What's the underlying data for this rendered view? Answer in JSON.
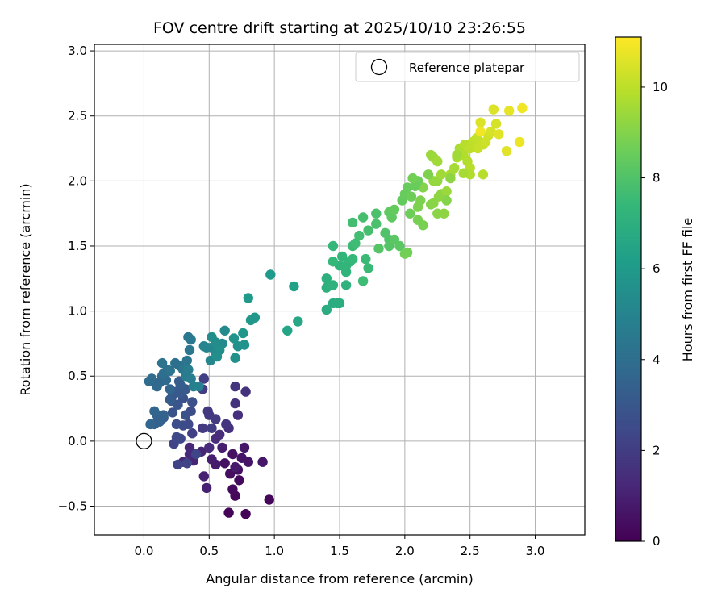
{
  "chart_data": {
    "type": "scatter",
    "title": "FOV centre drift starting at 2025/10/10 23:26:55",
    "xlabel": "Angular distance from reference (arcmin)",
    "ylabel": "Rotation from reference (arcmin)",
    "xlim": [
      -0.38,
      3.38
    ],
    "ylim": [
      -0.72,
      3.05
    ],
    "xticks": [
      0.0,
      0.5,
      1.0,
      1.5,
      2.0,
      2.5,
      3.0
    ],
    "xtick_labels": [
      "0.0",
      "0.5",
      "1.0",
      "1.5",
      "2.0",
      "2.5",
      "3.0"
    ],
    "yticks": [
      -0.5,
      0.0,
      0.5,
      1.0,
      1.5,
      2.0,
      2.5,
      3.0
    ],
    "ytick_labels": [
      "−0.5",
      "0.0",
      "0.5",
      "1.0",
      "1.5",
      "2.0",
      "2.5",
      "3.0"
    ],
    "grid": true,
    "legend": {
      "placement": "top-right",
      "entries": [
        "Reference platepar"
      ]
    },
    "reference_point": {
      "x": 0.0,
      "y": 0.0,
      "marker": "hollow-circle"
    },
    "colorbar": {
      "label": "Hours from first FF file",
      "colormap": "viridis",
      "range": [
        0,
        11.1
      ],
      "ticks": [
        0,
        2,
        4,
        6,
        8,
        10
      ],
      "tick_labels": [
        "0",
        "2",
        "4",
        "6",
        "8",
        "10"
      ]
    },
    "colormap_stops": [
      "#440154",
      "#482878",
      "#3e4a89",
      "#31688e",
      "#26828e",
      "#1f9e89",
      "#35b779",
      "#6ece58",
      "#b5de2b",
      "#fde725"
    ],
    "points": [
      [
        0.65,
        -0.55,
        0.1
      ],
      [
        0.78,
        -0.56,
        0.1
      ],
      [
        0.7,
        -0.42,
        0.2
      ],
      [
        0.96,
        -0.45,
        0.2
      ],
      [
        0.68,
        -0.37,
        0.3
      ],
      [
        0.73,
        -0.3,
        0.3
      ],
      [
        0.72,
        -0.22,
        0.4
      ],
      [
        0.66,
        -0.25,
        0.4
      ],
      [
        0.62,
        -0.17,
        0.5
      ],
      [
        0.68,
        -0.1,
        0.5
      ],
      [
        0.75,
        -0.13,
        0.6
      ],
      [
        0.8,
        -0.16,
        0.6
      ],
      [
        0.91,
        -0.16,
        0.7
      ],
      [
        0.77,
        -0.05,
        0.7
      ],
      [
        0.7,
        -0.2,
        0.8
      ],
      [
        0.55,
        -0.18,
        0.8
      ],
      [
        0.52,
        -0.14,
        0.9
      ],
      [
        0.6,
        -0.05,
        0.9
      ],
      [
        0.48,
        -0.36,
        1.0
      ],
      [
        0.46,
        -0.27,
        1.0
      ],
      [
        0.44,
        -0.08,
        1.1
      ],
      [
        0.38,
        -0.15,
        1.1
      ],
      [
        0.35,
        -0.05,
        1.2
      ],
      [
        0.3,
        -0.16,
        1.2
      ],
      [
        0.35,
        -0.1,
        1.3
      ],
      [
        0.5,
        -0.05,
        1.3
      ],
      [
        0.55,
        0.02,
        1.4
      ],
      [
        0.58,
        0.05,
        1.4
      ],
      [
        0.65,
        0.1,
        1.5
      ],
      [
        0.72,
        0.2,
        1.5
      ],
      [
        0.7,
        0.29,
        1.6
      ],
      [
        0.78,
        0.38,
        1.6
      ],
      [
        0.7,
        0.42,
        1.7
      ],
      [
        0.63,
        0.13,
        1.7
      ],
      [
        0.5,
        0.2,
        1.8
      ],
      [
        0.49,
        0.23,
        1.8
      ],
      [
        0.45,
        0.1,
        1.9
      ],
      [
        0.55,
        0.17,
        1.9
      ],
      [
        0.52,
        0.1,
        2.0
      ],
      [
        0.45,
        0.4,
        2.0
      ],
      [
        0.46,
        0.48,
        2.1
      ],
      [
        0.37,
        0.06,
        2.1
      ],
      [
        0.26,
        -0.18,
        2.2
      ],
      [
        0.33,
        -0.17,
        2.2
      ],
      [
        0.4,
        -0.1,
        2.3
      ],
      [
        0.23,
        -0.02,
        2.3
      ],
      [
        0.25,
        0.03,
        2.4
      ],
      [
        0.28,
        0.02,
        2.4
      ],
      [
        0.3,
        0.12,
        2.5
      ],
      [
        0.34,
        0.13,
        2.5
      ],
      [
        0.36,
        0.23,
        2.6
      ],
      [
        0.25,
        0.13,
        2.6
      ],
      [
        0.37,
        0.3,
        2.7
      ],
      [
        0.32,
        0.2,
        2.7
      ],
      [
        0.22,
        0.22,
        2.8
      ],
      [
        0.3,
        0.33,
        2.8
      ],
      [
        0.26,
        0.28,
        2.9
      ],
      [
        0.22,
        0.35,
        2.9
      ],
      [
        0.28,
        0.37,
        3.0
      ],
      [
        0.21,
        0.31,
        3.0
      ],
      [
        0.25,
        0.38,
        3.1
      ],
      [
        0.32,
        0.4,
        3.1
      ],
      [
        0.15,
        0.18,
        3.2
      ],
      [
        0.2,
        0.32,
        3.2
      ],
      [
        0.27,
        0.46,
        3.3
      ],
      [
        0.28,
        0.43,
        3.3
      ],
      [
        0.12,
        0.15,
        3.4
      ],
      [
        0.08,
        0.13,
        3.4
      ],
      [
        0.15,
        0.2,
        3.5
      ],
      [
        0.1,
        0.2,
        3.5
      ],
      [
        0.08,
        0.23,
        3.6
      ],
      [
        0.05,
        0.13,
        3.6
      ],
      [
        0.2,
        0.4,
        3.6
      ],
      [
        0.12,
        0.45,
        3.7
      ],
      [
        0.14,
        0.5,
        3.7
      ],
      [
        0.17,
        0.47,
        3.8
      ],
      [
        0.1,
        0.42,
        3.8
      ],
      [
        0.06,
        0.48,
        3.9
      ],
      [
        0.04,
        0.46,
        3.9
      ],
      [
        0.15,
        0.52,
        4.0
      ],
      [
        0.18,
        0.55,
        4.0
      ],
      [
        0.24,
        0.6,
        4.1
      ],
      [
        0.27,
        0.58,
        4.1
      ],
      [
        0.14,
        0.6,
        4.2
      ],
      [
        0.2,
        0.54,
        4.2
      ],
      [
        0.3,
        0.55,
        4.3
      ],
      [
        0.33,
        0.62,
        4.3
      ],
      [
        0.35,
        0.7,
        4.4
      ],
      [
        0.34,
        0.8,
        4.4
      ],
      [
        0.36,
        0.78,
        4.5
      ],
      [
        0.32,
        0.5,
        4.6
      ],
      [
        0.34,
        0.55,
        4.6
      ],
      [
        0.36,
        0.48,
        4.7
      ],
      [
        0.38,
        0.42,
        4.8
      ],
      [
        0.42,
        0.42,
        4.9
      ],
      [
        0.46,
        0.73,
        5.0
      ],
      [
        0.48,
        0.72,
        5.0
      ],
      [
        0.52,
        0.72,
        5.1
      ],
      [
        0.51,
        0.62,
        5.1
      ],
      [
        0.55,
        0.68,
        5.2
      ],
      [
        0.58,
        0.73,
        5.2
      ],
      [
        0.6,
        0.75,
        5.3
      ],
      [
        0.62,
        0.85,
        5.3
      ],
      [
        0.52,
        0.8,
        5.4
      ],
      [
        0.55,
        0.76,
        5.4
      ],
      [
        0.58,
        0.7,
        5.5
      ],
      [
        0.56,
        0.65,
        5.5
      ],
      [
        0.7,
        0.64,
        5.6
      ],
      [
        0.72,
        0.73,
        5.6
      ],
      [
        0.69,
        0.79,
        5.7
      ],
      [
        0.77,
        0.74,
        5.7
      ],
      [
        0.76,
        0.83,
        5.8
      ],
      [
        0.82,
        0.93,
        5.9
      ],
      [
        0.85,
        0.95,
        5.9
      ],
      [
        0.8,
        1.1,
        6.0
      ],
      [
        0.97,
        1.28,
        6.0
      ],
      [
        1.15,
        1.19,
        6.3
      ],
      [
        1.1,
        0.85,
        6.5
      ],
      [
        1.18,
        0.92,
        6.6
      ],
      [
        1.4,
        1.01,
        6.8
      ],
      [
        1.45,
        1.06,
        6.8
      ],
      [
        1.48,
        1.06,
        6.9
      ],
      [
        1.5,
        1.06,
        6.9
      ],
      [
        1.4,
        1.18,
        7.0
      ],
      [
        1.4,
        1.25,
        7.0
      ],
      [
        1.45,
        1.2,
        7.1
      ],
      [
        1.55,
        1.2,
        7.1
      ],
      [
        1.55,
        1.3,
        7.2
      ],
      [
        1.5,
        1.35,
        7.2
      ],
      [
        1.55,
        1.35,
        7.3
      ],
      [
        1.58,
        1.38,
        7.3
      ],
      [
        1.52,
        1.42,
        7.3
      ],
      [
        1.6,
        1.4,
        7.4
      ],
      [
        1.45,
        1.38,
        7.4
      ],
      [
        1.45,
        1.5,
        7.4
      ],
      [
        1.6,
        1.5,
        7.5
      ],
      [
        1.7,
        1.4,
        7.5
      ],
      [
        1.72,
        1.33,
        7.5
      ],
      [
        1.68,
        1.23,
        7.6
      ],
      [
        1.62,
        1.52,
        7.6
      ],
      [
        1.65,
        1.58,
        7.7
      ],
      [
        1.6,
        1.68,
        7.7
      ],
      [
        1.68,
        1.72,
        7.8
      ],
      [
        1.72,
        1.62,
        7.8
      ],
      [
        1.78,
        1.67,
        7.9
      ],
      [
        1.78,
        1.75,
        7.9
      ],
      [
        1.85,
        1.6,
        8.0
      ],
      [
        1.88,
        1.55,
        8.0
      ],
      [
        1.8,
        1.48,
        8.1
      ],
      [
        1.88,
        1.5,
        8.1
      ],
      [
        1.92,
        1.55,
        8.2
      ],
      [
        1.96,
        1.5,
        8.2
      ],
      [
        1.9,
        1.72,
        8.3
      ],
      [
        1.88,
        1.76,
        8.3
      ],
      [
        1.92,
        1.78,
        8.4
      ],
      [
        1.98,
        1.85,
        8.4
      ],
      [
        2.0,
        1.9,
        8.5
      ],
      [
        2.02,
        1.95,
        8.5
      ],
      [
        2.05,
        1.88,
        8.6
      ],
      [
        2.04,
        1.75,
        8.6
      ],
      [
        2.02,
        1.45,
        8.7
      ],
      [
        2.0,
        1.44,
        8.7
      ],
      [
        2.1,
        1.7,
        8.8
      ],
      [
        2.14,
        1.66,
        8.8
      ],
      [
        2.1,
        1.8,
        8.9
      ],
      [
        2.12,
        1.85,
        8.9
      ],
      [
        2.14,
        1.95,
        9.0
      ],
      [
        2.2,
        1.82,
        9.0
      ],
      [
        2.22,
        1.83,
        9.1
      ],
      [
        2.25,
        1.75,
        9.1
      ],
      [
        2.3,
        1.75,
        9.2
      ],
      [
        2.28,
        1.9,
        9.2
      ],
      [
        2.22,
        2.0,
        9.3
      ],
      [
        2.25,
        2.0,
        9.3
      ],
      [
        2.2,
        2.2,
        9.4
      ],
      [
        2.22,
        2.18,
        9.4
      ],
      [
        2.25,
        2.15,
        9.5
      ],
      [
        2.28,
        2.05,
        9.5
      ],
      [
        2.35,
        2.05,
        9.6
      ],
      [
        2.38,
        2.1,
        9.6
      ],
      [
        2.4,
        2.18,
        9.7
      ],
      [
        2.42,
        2.25,
        9.7
      ],
      [
        2.45,
        2.2,
        9.8
      ],
      [
        2.48,
        2.15,
        9.8
      ],
      [
        2.5,
        2.1,
        9.9
      ],
      [
        2.46,
        2.28,
        9.9
      ],
      [
        2.5,
        2.25,
        10.0
      ],
      [
        2.52,
        2.3,
        10.0
      ],
      [
        2.55,
        2.33,
        10.1
      ],
      [
        2.58,
        2.3,
        10.1
      ],
      [
        2.56,
        2.25,
        10.2
      ],
      [
        2.6,
        2.28,
        10.2
      ],
      [
        2.62,
        2.3,
        10.3
      ],
      [
        2.64,
        2.35,
        10.3
      ],
      [
        2.66,
        2.38,
        10.4
      ],
      [
        2.7,
        2.44,
        10.4
      ],
      [
        2.58,
        2.45,
        10.5
      ],
      [
        2.68,
        2.55,
        10.5
      ],
      [
        2.72,
        2.36,
        10.6
      ],
      [
        2.78,
        2.23,
        10.6
      ],
      [
        2.8,
        2.54,
        10.7
      ],
      [
        2.88,
        2.3,
        10.8
      ],
      [
        2.9,
        2.56,
        10.9
      ],
      [
        2.58,
        2.38,
        10.9
      ],
      [
        2.4,
        2.2,
        9.5
      ],
      [
        2.32,
        1.92,
        9.4
      ],
      [
        2.1,
        2.0,
        8.6
      ],
      [
        2.08,
        1.96,
        8.5
      ],
      [
        2.06,
        2.02,
        8.7
      ],
      [
        2.35,
        2.02,
        9.2
      ],
      [
        2.5,
        2.05,
        9.8
      ],
      [
        2.45,
        2.06,
        9.6
      ],
      [
        2.6,
        2.05,
        9.9
      ],
      [
        2.32,
        1.85,
        9.0
      ],
      [
        2.18,
        2.05,
        8.9
      ],
      [
        2.26,
        1.88,
        9.2
      ]
    ]
  }
}
